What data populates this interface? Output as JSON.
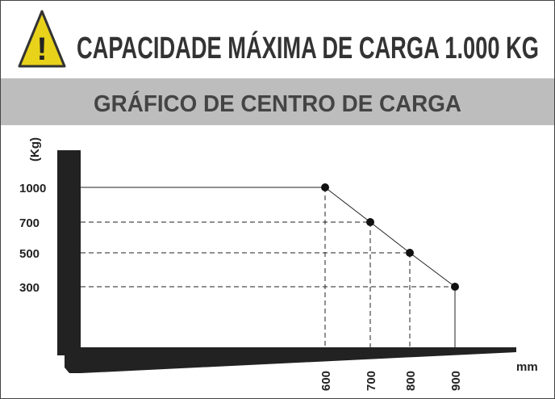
{
  "header": {
    "warning_icon": "!",
    "title": "CAPACIDADE MÁXIMA DE CARGA 1.000 KG"
  },
  "subtitle": "GRÁFICO DE CENTRO DE CARGA",
  "load_chart": {
    "y_label": "(Kg)",
    "x_label": "mm",
    "points": [
      {
        "x": "600",
        "y": "1000"
      },
      {
        "x": "700",
        "y": "700"
      },
      {
        "x": "800",
        "y": "500"
      },
      {
        "x": "900",
        "y": "300"
      }
    ]
  }
}
